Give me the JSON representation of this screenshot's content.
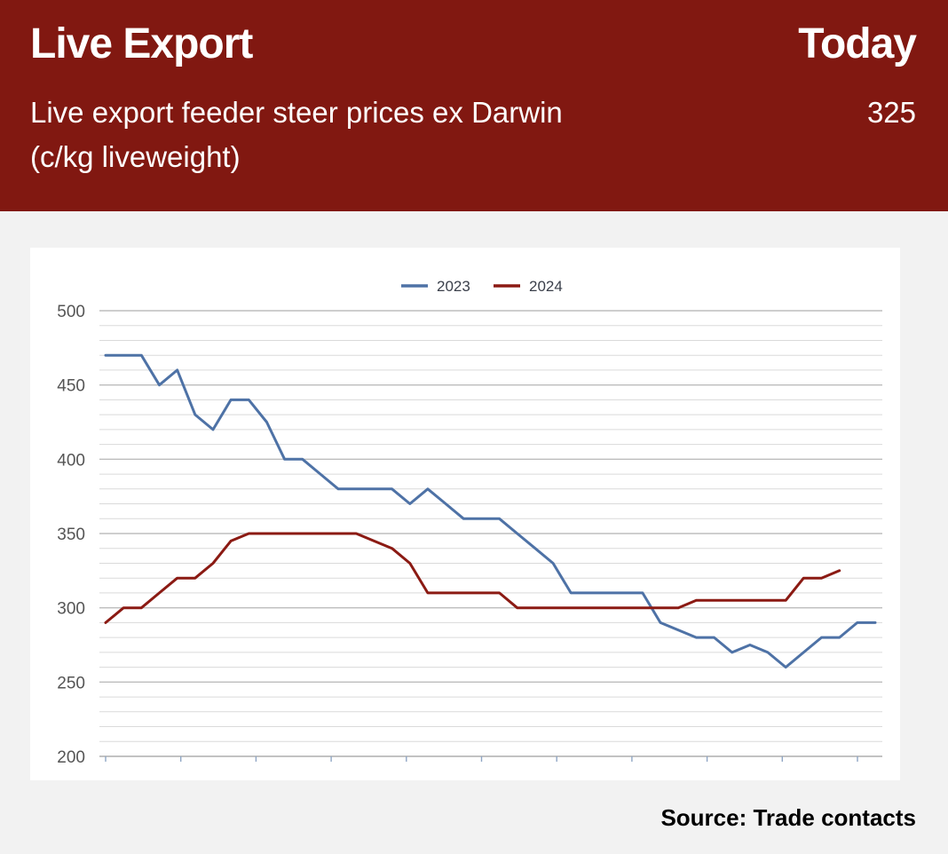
{
  "header": {
    "title": "Live Export",
    "today_label": "Today",
    "subtitle": "Live export feeder steer prices ex Darwin (c/kg liveweight)",
    "today_value": "325",
    "background_color": "#811811"
  },
  "source": "Source: Trade contacts",
  "chart_data": {
    "type": "line",
    "title": "",
    "xlabel": "",
    "ylabel": "",
    "ylim": [
      200,
      500
    ],
    "y_ticks": [
      200,
      250,
      300,
      350,
      400,
      450,
      500
    ],
    "y_minor_step": 10,
    "x_count": 44,
    "grid": true,
    "legend_position": "top-center",
    "series": [
      {
        "name": "2023",
        "color": "#4e72a6",
        "values": [
          470,
          470,
          470,
          450,
          460,
          430,
          420,
          440,
          440,
          425,
          400,
          400,
          390,
          380,
          380,
          380,
          380,
          370,
          380,
          370,
          360,
          360,
          360,
          350,
          340,
          330,
          310,
          310,
          310,
          310,
          310,
          290,
          285,
          280,
          280,
          270,
          275,
          270,
          260,
          270,
          280,
          280,
          290,
          290
        ]
      },
      {
        "name": "2024",
        "color": "#8b1a13",
        "values": [
          290,
          300,
          300,
          310,
          320,
          320,
          330,
          345,
          350,
          350,
          350,
          350,
          350,
          350,
          350,
          345,
          340,
          330,
          310,
          310,
          310,
          310,
          310,
          300,
          300,
          300,
          300,
          300,
          300,
          300,
          300,
          300,
          300,
          305,
          305,
          305,
          305,
          305,
          305,
          320,
          320,
          325
        ]
      }
    ]
  }
}
